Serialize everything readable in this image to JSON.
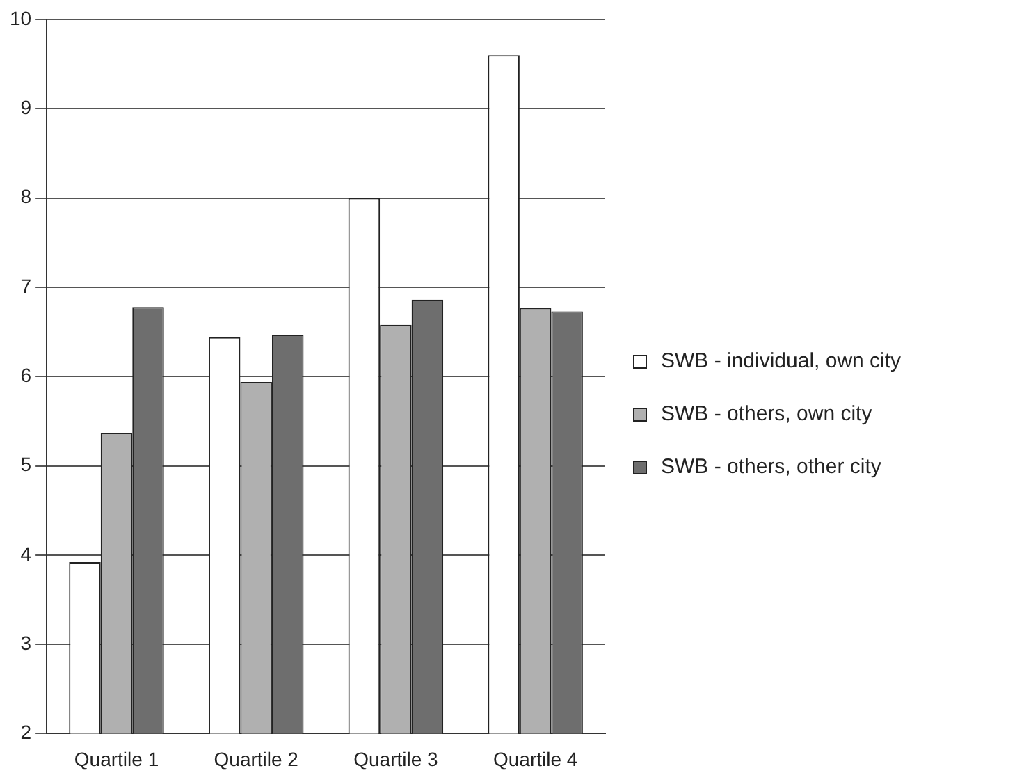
{
  "chart_data": {
    "type": "bar",
    "categories": [
      "Quartile 1",
      "Quartile 2",
      "Quartile 3",
      "Quartile 4"
    ],
    "series": [
      {
        "name": "SWB - individual, own city",
        "color": "#ffffff",
        "values": [
          3.92,
          6.44,
          8.0,
          9.6
        ]
      },
      {
        "name": "SWB - others, own city",
        "color": "#b0b0b0",
        "values": [
          5.37,
          5.94,
          6.58,
          6.77
        ]
      },
      {
        "name": "SWB - others, other city",
        "color": "#6e6e6e",
        "values": [
          6.78,
          6.47,
          6.86,
          6.73
        ]
      }
    ],
    "ylim": [
      2,
      10
    ],
    "yticks": [
      2,
      3,
      4,
      5,
      6,
      7,
      8,
      9,
      10
    ],
    "grid": "y",
    "legend": "right"
  }
}
